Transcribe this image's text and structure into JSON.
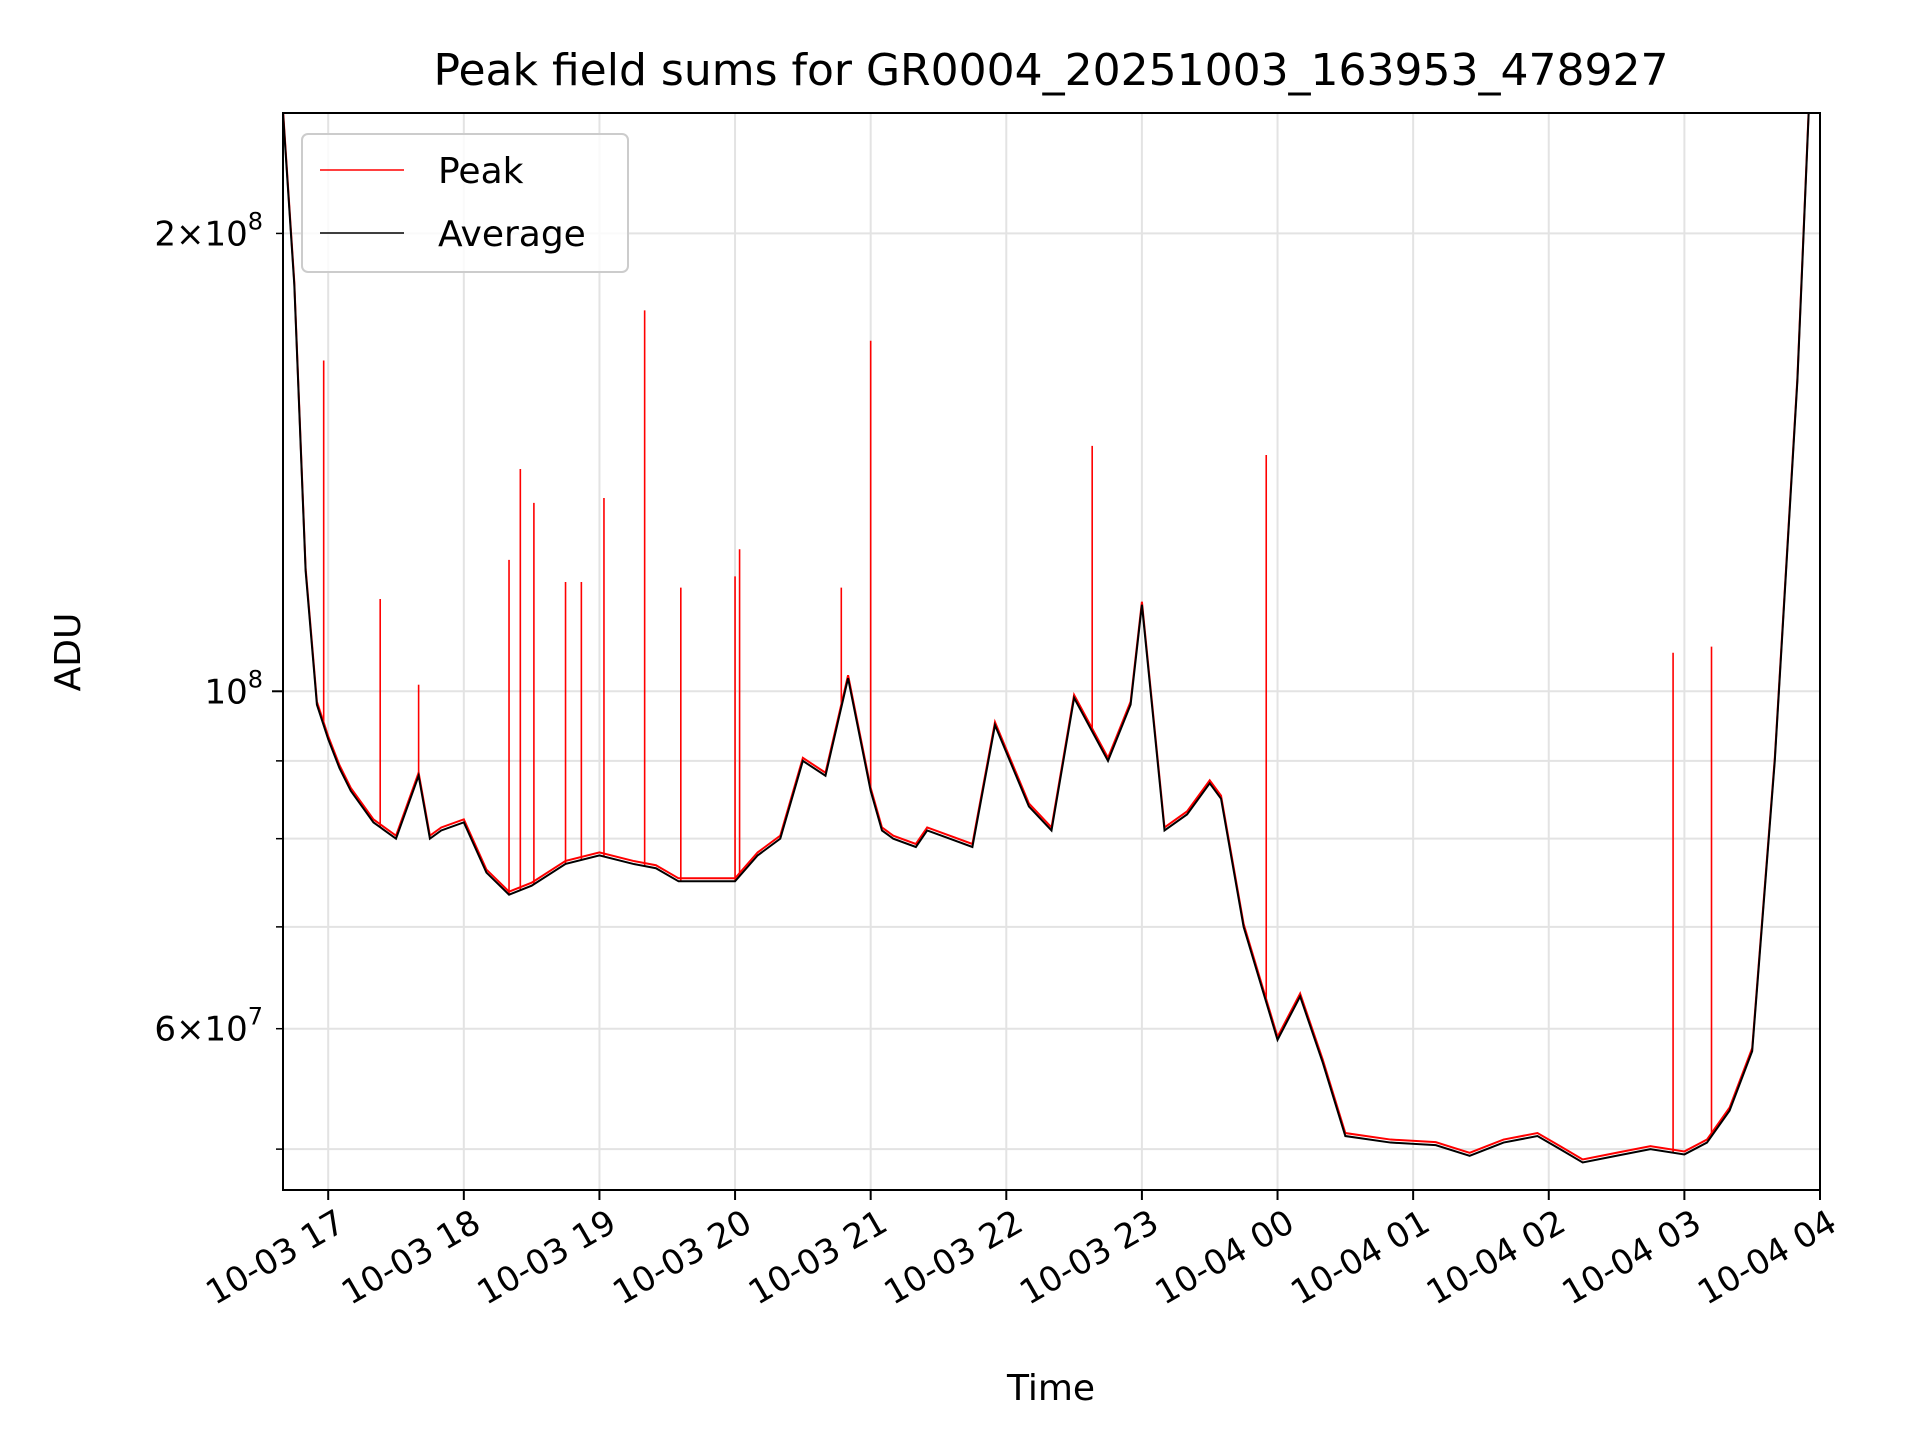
{
  "chart_data": {
    "type": "line",
    "title": "Peak field sums for GR0004_20251003_163953_478927",
    "xlabel": "Time",
    "ylabel": "ADU",
    "y_scale": "log",
    "ylim": [
      47000000,
      240000000
    ],
    "xlim": [
      "2025-10-03 16:40",
      "2025-10-04 04:00"
    ],
    "grid": true,
    "legend_position": "upper-left",
    "x_ticks": [
      "2025-10-03 17:00",
      "2025-10-03 18:00",
      "2025-10-03 19:00",
      "2025-10-03 20:00",
      "2025-10-03 21:00",
      "2025-10-03 22:00",
      "2025-10-03 23:00",
      "2025-10-04 00:00",
      "2025-10-04 01:00",
      "2025-10-04 02:00",
      "2025-10-04 03:00",
      "2025-10-04 04:00"
    ],
    "x_tick_labels": [
      "10-03 17",
      "10-03 18",
      "10-03 19",
      "10-03 20",
      "10-03 21",
      "10-03 22",
      "10-03 23",
      "10-04 00",
      "10-04 01",
      "10-04 02",
      "10-04 03",
      "10-04 04"
    ],
    "y_major_ticks": [
      {
        "value": 100000000,
        "base": "10",
        "exp": "8"
      }
    ],
    "y_minor_ticks": [
      {
        "value": 60000000,
        "mant": "6",
        "exp": "7",
        "labeled": true
      },
      {
        "value": 200000000,
        "mant": "2",
        "exp": "8",
        "labeled": true
      },
      {
        "value": 50000000,
        "labeled": false
      },
      {
        "value": 70000000,
        "labeled": false
      },
      {
        "value": 80000000,
        "labeled": false
      },
      {
        "value": 90000000,
        "labeled": false
      }
    ],
    "series": [
      {
        "name": "Average",
        "color": "#000000",
        "x": [
          "2025-10-03 16:40",
          "2025-10-03 16:45",
          "2025-10-03 16:50",
          "2025-10-03 16:55",
          "2025-10-03 17:00",
          "2025-10-03 17:05",
          "2025-10-03 17:10",
          "2025-10-03 17:20",
          "2025-10-03 17:30",
          "2025-10-03 17:40",
          "2025-10-03 17:45",
          "2025-10-03 17:50",
          "2025-10-03 18:00",
          "2025-10-03 18:10",
          "2025-10-03 18:20",
          "2025-10-03 18:30",
          "2025-10-03 18:45",
          "2025-10-03 19:00",
          "2025-10-03 19:15",
          "2025-10-03 19:25",
          "2025-10-03 19:35",
          "2025-10-03 19:50",
          "2025-10-03 20:00",
          "2025-10-03 20:10",
          "2025-10-03 20:20",
          "2025-10-03 20:30",
          "2025-10-03 20:40",
          "2025-10-03 20:50",
          "2025-10-03 21:00",
          "2025-10-03 21:05",
          "2025-10-03 21:10",
          "2025-10-03 21:20",
          "2025-10-03 21:25",
          "2025-10-03 21:35",
          "2025-10-03 21:45",
          "2025-10-03 21:55",
          "2025-10-03 22:10",
          "2025-10-03 22:20",
          "2025-10-03 22:30",
          "2025-10-03 22:45",
          "2025-10-03 22:55",
          "2025-10-03 23:00",
          "2025-10-03 23:10",
          "2025-10-03 23:20",
          "2025-10-03 23:30",
          "2025-10-03 23:35",
          "2025-10-03 23:45",
          "2025-10-04 00:00",
          "2025-10-04 00:10",
          "2025-10-04 00:20",
          "2025-10-04 00:30",
          "2025-10-04 00:50",
          "2025-10-04 01:10",
          "2025-10-04 01:25",
          "2025-10-04 01:40",
          "2025-10-04 01:55",
          "2025-10-04 02:05",
          "2025-10-04 02:15",
          "2025-10-04 02:30",
          "2025-10-04 02:45",
          "2025-10-04 03:00",
          "2025-10-04 03:10",
          "2025-10-04 03:20",
          "2025-10-04 03:30",
          "2025-10-04 03:40",
          "2025-10-04 03:50",
          "2025-10-04 03:55"
        ],
        "y": [
          240000000,
          185000000,
          120000000,
          98000000,
          93000000,
          89000000,
          86000000,
          82000000,
          80000000,
          88000000,
          80000000,
          81000000,
          82000000,
          76000000,
          73500000,
          74500000,
          77000000,
          78000000,
          77000000,
          76500000,
          75000000,
          75000000,
          75000000,
          78000000,
          80000000,
          90000000,
          88000000,
          102000000,
          86000000,
          81000000,
          80000000,
          79000000,
          81000000,
          80000000,
          79000000,
          95000000,
          84000000,
          81000000,
          99000000,
          90000000,
          98000000,
          114000000,
          81000000,
          83000000,
          87000000,
          85000000,
          70000000,
          59000000,
          63000000,
          57000000,
          51000000,
          50500000,
          50300000,
          49500000,
          50500000,
          51000000,
          50000000,
          49000000,
          49500000,
          50000000,
          49600000,
          50500000,
          53000000,
          58000000,
          90000000,
          160000000,
          240000000
        ]
      },
      {
        "name": "Peak",
        "color": "#ff0000",
        "spikes": [
          {
            "x": "2025-10-03 16:58",
            "y": 165000000
          },
          {
            "x": "2025-10-03 17:23",
            "y": 115000000
          },
          {
            "x": "2025-10-03 17:40",
            "y": 101000000
          },
          {
            "x": "2025-10-03 18:20",
            "y": 122000000
          },
          {
            "x": "2025-10-03 18:25",
            "y": 140000000
          },
          {
            "x": "2025-10-03 18:31",
            "y": 133000000
          },
          {
            "x": "2025-10-03 18:45",
            "y": 118000000
          },
          {
            "x": "2025-10-03 18:52",
            "y": 118000000
          },
          {
            "x": "2025-10-03 19:02",
            "y": 134000000
          },
          {
            "x": "2025-10-03 19:20",
            "y": 178000000
          },
          {
            "x": "2025-10-03 19:36",
            "y": 117000000
          },
          {
            "x": "2025-10-03 20:00",
            "y": 119000000
          },
          {
            "x": "2025-10-03 20:02",
            "y": 124000000
          },
          {
            "x": "2025-10-03 20:47",
            "y": 117000000
          },
          {
            "x": "2025-10-03 21:00",
            "y": 170000000
          },
          {
            "x": "2025-10-03 22:38",
            "y": 145000000
          },
          {
            "x": "2025-10-03 23:55",
            "y": 143000000
          },
          {
            "x": "2025-10-04 02:55",
            "y": 106000000
          },
          {
            "x": "2025-10-04 03:12",
            "y": 107000000
          }
        ]
      }
    ]
  }
}
